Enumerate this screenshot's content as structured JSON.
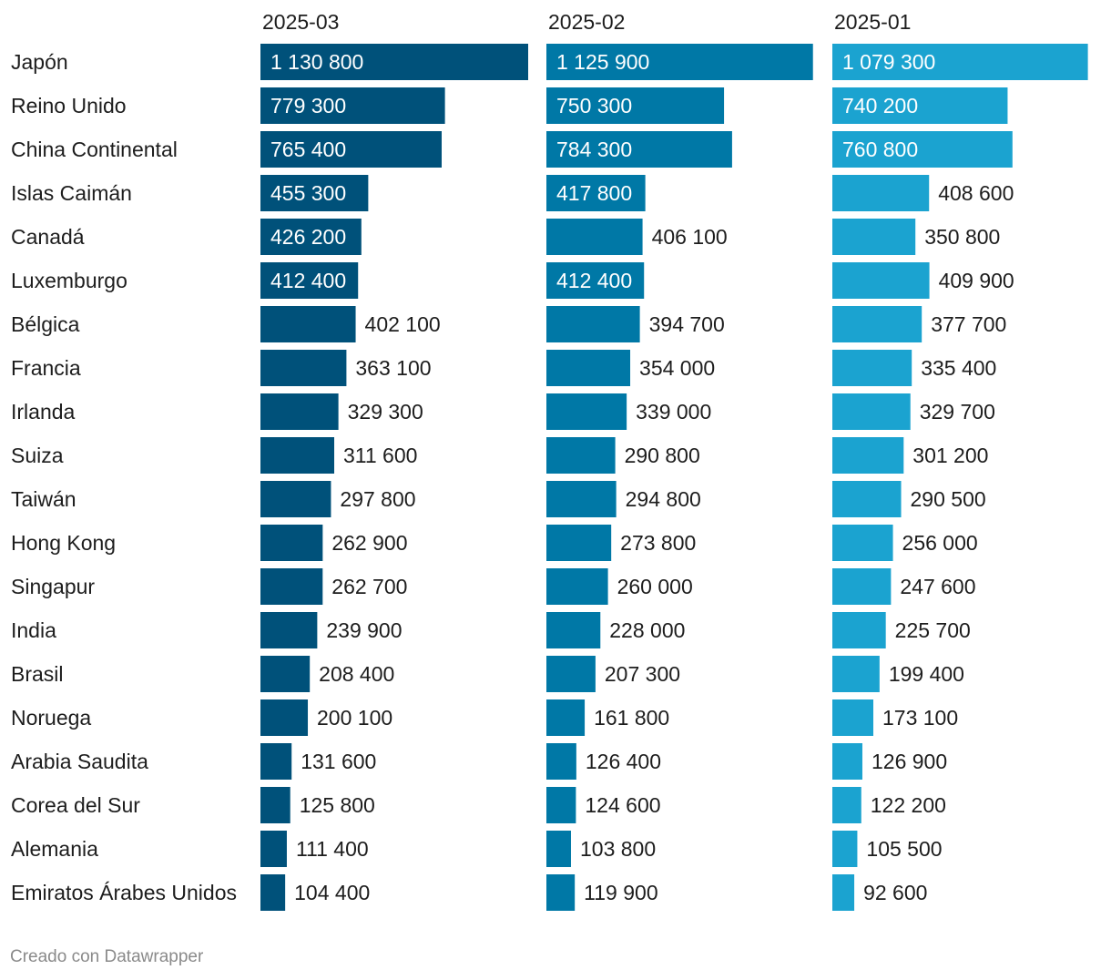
{
  "chart_data": {
    "type": "bar",
    "orientation": "horizontal",
    "categories": [
      "Japón",
      "Reino Unido",
      "China Continental",
      "Islas Caimán",
      "Canadá",
      "Luxemburgo",
      "Bélgica",
      "Francia",
      "Irlanda",
      "Suiza",
      "Taiwán",
      "Hong Kong",
      "Singapur",
      "India",
      "Brasil",
      "Noruega",
      "Arabia Saudita",
      "Corea del Sur",
      "Alemania",
      "Emiratos Árabes Unidos"
    ],
    "series": [
      {
        "name": "2025-03",
        "color": "#00517a",
        "values": [
          1130800,
          779300,
          765400,
          455300,
          426200,
          412400,
          402100,
          363100,
          329300,
          311600,
          297800,
          262900,
          262700,
          239900,
          208400,
          200100,
          131600,
          125800,
          111400,
          104400
        ],
        "labels": [
          "1 130 800",
          "779 300",
          "765 400",
          "455 300",
          "426 200",
          "412 400",
          "402 100",
          "363 100",
          "329 300",
          "311 600",
          "297 800",
          "262 900",
          "262 700",
          "239 900",
          "208 400",
          "200 100",
          "131 600",
          "125 800",
          "111 400",
          "104 400"
        ]
      },
      {
        "name": "2025-02",
        "color": "#0078a6",
        "values": [
          1125900,
          750300,
          784300,
          417800,
          406100,
          412400,
          394700,
          354000,
          339000,
          290800,
          294800,
          273800,
          260000,
          228000,
          207300,
          161800,
          126400,
          124600,
          103800,
          119900
        ],
        "labels": [
          "1 125 900",
          "750 300",
          "784 300",
          "417 800",
          "406 100",
          "412 400",
          "394 700",
          "354 000",
          "339 000",
          "290 800",
          "294 800",
          "273 800",
          "260 000",
          "228 000",
          "207 300",
          "161 800",
          "126 400",
          "124 600",
          "103 800",
          "119 900"
        ]
      },
      {
        "name": "2025-01",
        "color": "#1ba3d0",
        "values": [
          1079300,
          740200,
          760800,
          408600,
          350800,
          409900,
          377700,
          335400,
          329700,
          301200,
          290500,
          256000,
          247600,
          225700,
          199400,
          173100,
          126900,
          122200,
          105500,
          92600
        ],
        "labels": [
          "1 079 300",
          "740 200",
          "760 800",
          "408 600",
          "350 800",
          "409 900",
          "377 700",
          "335 400",
          "329 700",
          "301 200",
          "290 500",
          "256 000",
          "247 600",
          "225 700",
          "199 400",
          "173 100",
          "126 900",
          "122 200",
          "105 500",
          "92 600"
        ]
      }
    ],
    "xlim": [
      0,
      1130800
    ],
    "grid": false,
    "legend": "none",
    "label_color_inside": "#ffffff",
    "label_color_outside": "#1d1d1d"
  },
  "footer": {
    "credit": "Creado con Datawrapper"
  }
}
